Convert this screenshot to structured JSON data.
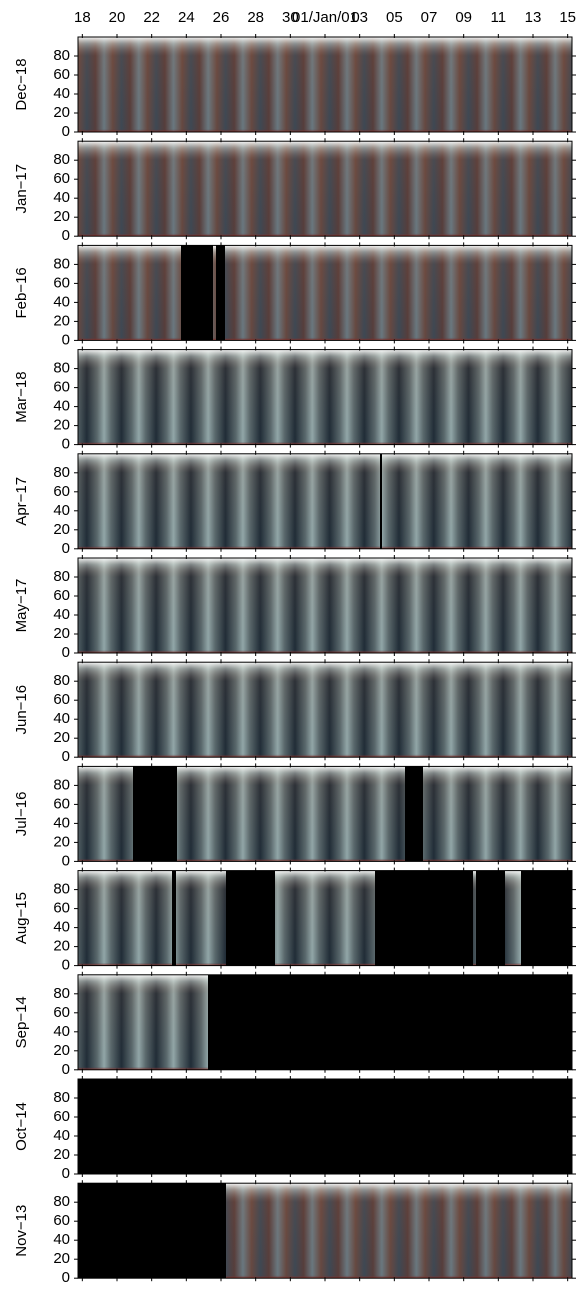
{
  "chart_data": {
    "type": "keogram",
    "xlim": [
      -0.25,
      28.25
    ],
    "xticks": [
      {
        "value": 0,
        "label": "18"
      },
      {
        "value": 2,
        "label": "20"
      },
      {
        "value": 4,
        "label": "22"
      },
      {
        "value": 6,
        "label": "24"
      },
      {
        "value": 8,
        "label": "26"
      },
      {
        "value": 10,
        "label": "28"
      },
      {
        "value": 12,
        "label": "30"
      },
      {
        "value": 14,
        "label": "01/Jan/01"
      },
      {
        "value": 16,
        "label": "03"
      },
      {
        "value": 18,
        "label": "05"
      },
      {
        "value": 20,
        "label": "07"
      },
      {
        "value": 22,
        "label": "09"
      },
      {
        "value": 24,
        "label": "11"
      },
      {
        "value": 26,
        "label": "13"
      },
      {
        "value": 28,
        "label": "15"
      }
    ],
    "ylim": [
      0,
      100
    ],
    "yticks": [
      0,
      20,
      40,
      60,
      80
    ],
    "panels": [
      {
        "label": "Dec−18"
      },
      {
        "label": "Jan−17"
      },
      {
        "label": "Feb−16"
      },
      {
        "label": "Mar−18"
      },
      {
        "label": "Apr−17"
      },
      {
        "label": "May−17"
      },
      {
        "label": "Jun−16"
      },
      {
        "label": "Jul−16"
      },
      {
        "label": "Aug−15"
      },
      {
        "label": "Sep−14"
      },
      {
        "label": "Oct−14"
      },
      {
        "label": "Nov−13"
      }
    ]
  }
}
